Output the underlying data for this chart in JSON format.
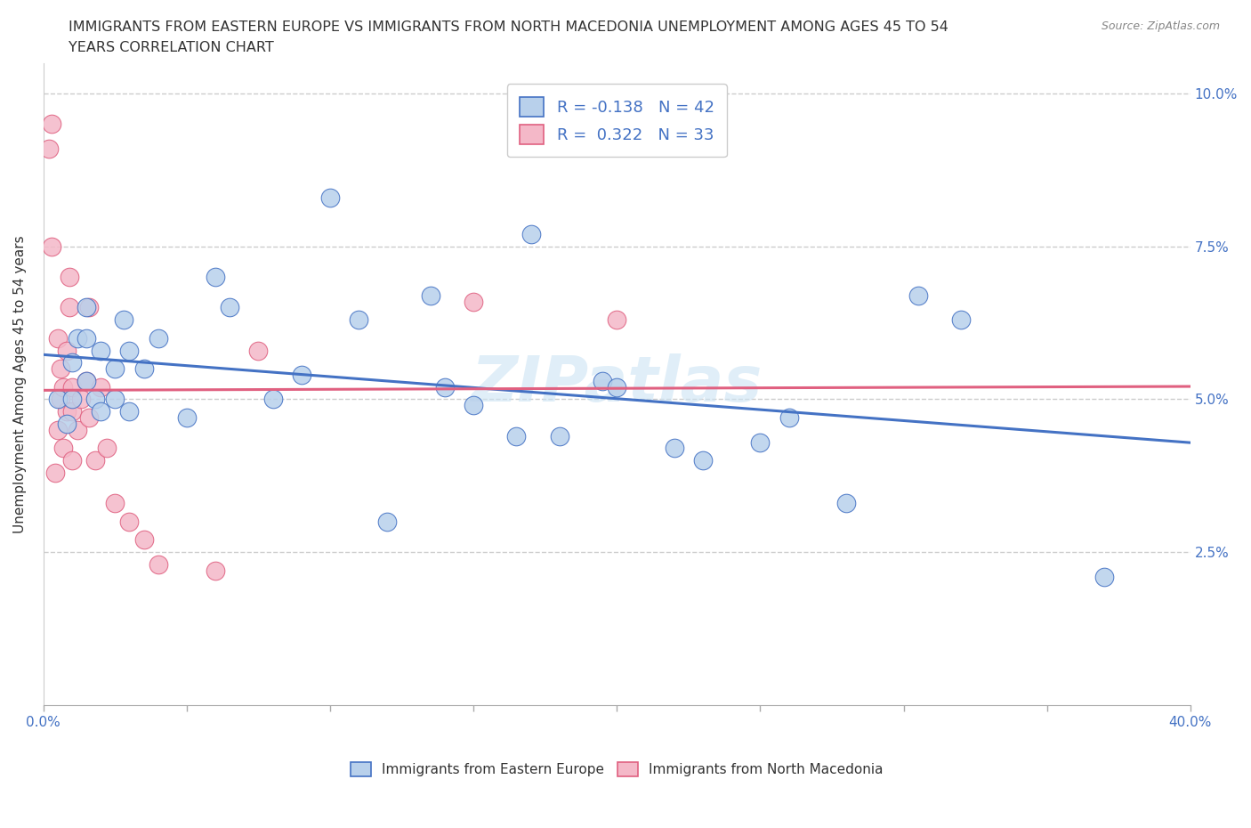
{
  "title_line1": "IMMIGRANTS FROM EASTERN EUROPE VS IMMIGRANTS FROM NORTH MACEDONIA UNEMPLOYMENT AMONG AGES 45 TO 54",
  "title_line2": "YEARS CORRELATION CHART",
  "source_text": "Source: ZipAtlas.com",
  "ylabel": "Unemployment Among Ages 45 to 54 years",
  "xlim": [
    0.0,
    0.4
  ],
  "ylim": [
    0.0,
    0.105
  ],
  "xticks": [
    0.0,
    0.05,
    0.1,
    0.15,
    0.2,
    0.25,
    0.3,
    0.35,
    0.4
  ],
  "xticklabels": [
    "0.0%",
    "",
    "",
    "",
    "",
    "",
    "",
    "",
    "40.0%"
  ],
  "yticks": [
    0.0,
    0.025,
    0.05,
    0.075,
    0.1
  ],
  "yticklabels": [
    "",
    "2.5%",
    "5.0%",
    "7.5%",
    "10.0%"
  ],
  "grid_color": "#cccccc",
  "background_color": "#ffffff",
  "watermark": "ZIPatlas",
  "legend1_label": "Immigrants from Eastern Europe",
  "legend2_label": "Immigrants from North Macedonia",
  "r1": -0.138,
  "n1": 42,
  "r2": 0.322,
  "n2": 33,
  "color_eastern": "#b8d0eb",
  "color_macedonia": "#f4b8c8",
  "line_color_eastern": "#4472c4",
  "line_color_macedonia": "#e06080",
  "tick_color": "#4472c4",
  "text_color": "#333333",
  "eastern_x": [
    0.005,
    0.008,
    0.01,
    0.01,
    0.012,
    0.015,
    0.015,
    0.015,
    0.018,
    0.02,
    0.02,
    0.025,
    0.025,
    0.028,
    0.03,
    0.03,
    0.035,
    0.04,
    0.05,
    0.06,
    0.065,
    0.08,
    0.09,
    0.1,
    0.11,
    0.12,
    0.135,
    0.14,
    0.15,
    0.165,
    0.17,
    0.18,
    0.195,
    0.2,
    0.22,
    0.23,
    0.25,
    0.26,
    0.28,
    0.305,
    0.32,
    0.37
  ],
  "eastern_y": [
    0.05,
    0.046,
    0.05,
    0.056,
    0.06,
    0.053,
    0.06,
    0.065,
    0.05,
    0.048,
    0.058,
    0.05,
    0.055,
    0.063,
    0.048,
    0.058,
    0.055,
    0.06,
    0.047,
    0.07,
    0.065,
    0.05,
    0.054,
    0.083,
    0.063,
    0.03,
    0.067,
    0.052,
    0.049,
    0.044,
    0.077,
    0.044,
    0.053,
    0.052,
    0.042,
    0.04,
    0.043,
    0.047,
    0.033,
    0.067,
    0.063,
    0.021
  ],
  "macedonia_x": [
    0.002,
    0.003,
    0.003,
    0.004,
    0.005,
    0.005,
    0.006,
    0.006,
    0.007,
    0.007,
    0.008,
    0.008,
    0.009,
    0.009,
    0.01,
    0.01,
    0.01,
    0.012,
    0.013,
    0.015,
    0.016,
    0.016,
    0.018,
    0.02,
    0.022,
    0.025,
    0.03,
    0.035,
    0.04,
    0.06,
    0.075,
    0.15,
    0.2
  ],
  "macedonia_y": [
    0.091,
    0.095,
    0.075,
    0.038,
    0.045,
    0.06,
    0.05,
    0.055,
    0.042,
    0.052,
    0.048,
    0.058,
    0.065,
    0.07,
    0.048,
    0.052,
    0.04,
    0.045,
    0.05,
    0.053,
    0.047,
    0.065,
    0.04,
    0.052,
    0.042,
    0.033,
    0.03,
    0.027,
    0.023,
    0.022,
    0.058,
    0.066,
    0.063
  ]
}
